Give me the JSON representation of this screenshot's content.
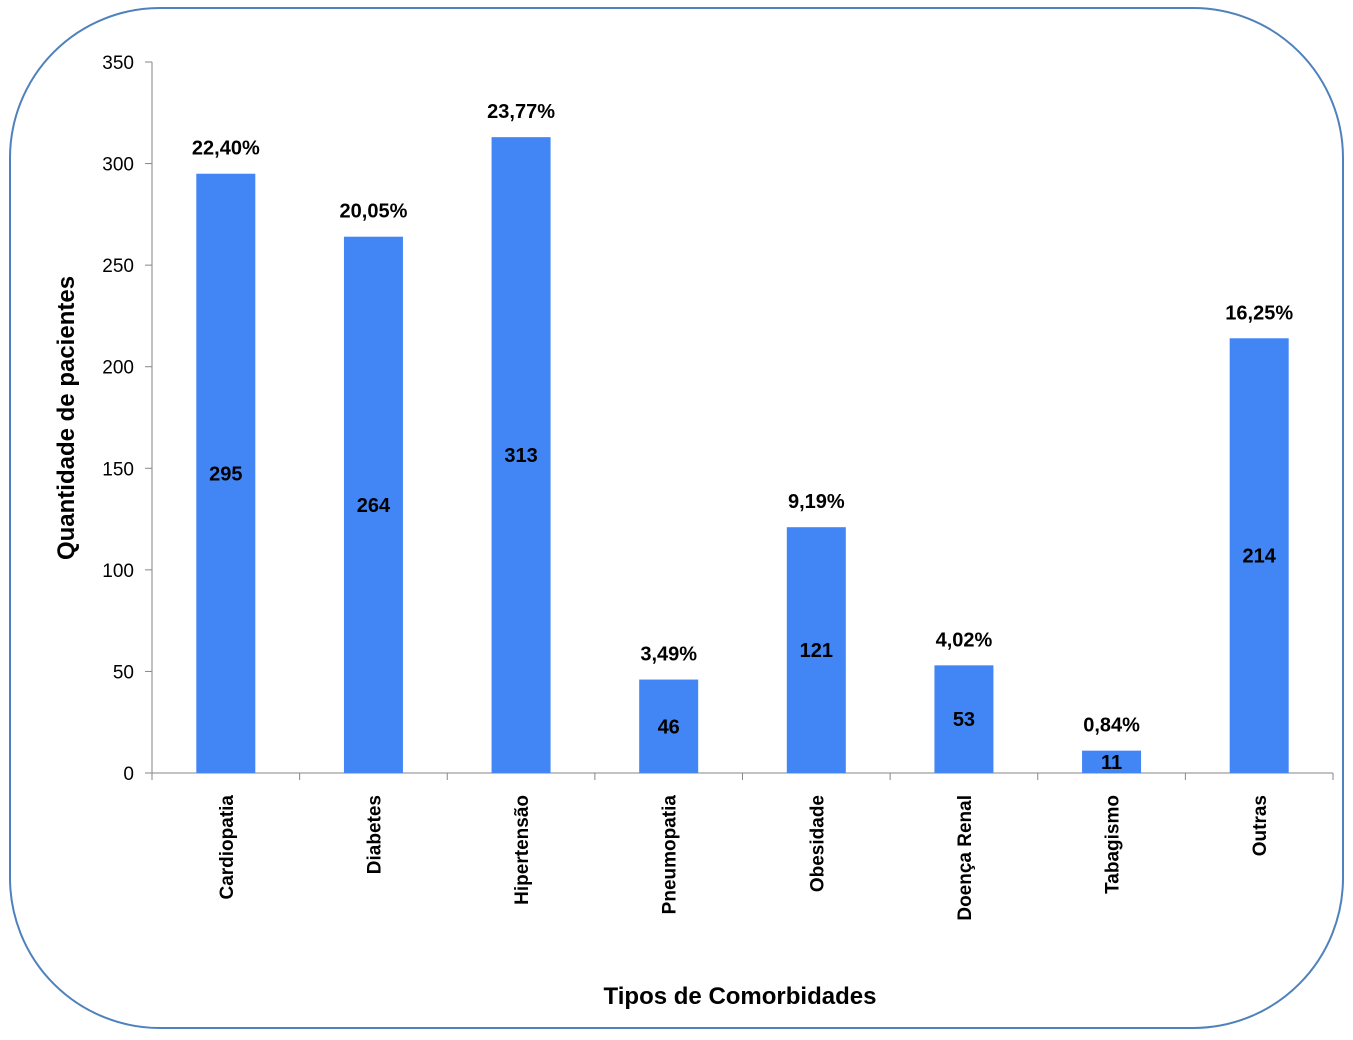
{
  "chart_data": {
    "type": "bar",
    "categories": [
      "Cardiopatia",
      "Diabetes",
      "Hipertensão",
      "Pneumopatia",
      "Obesidade",
      "Doença Renal",
      "Tabagismo",
      "Outras"
    ],
    "values": [
      295,
      264,
      313,
      46,
      121,
      53,
      11,
      214
    ],
    "value_labels": [
      "295",
      "264",
      "313",
      "46",
      "121",
      "53",
      "11",
      "214"
    ],
    "percent_labels": [
      "22,40%",
      "20,05%",
      "23,77%",
      "3,49%",
      "9,19%",
      "4,02%",
      "0,84%",
      "16,25%"
    ],
    "title": "",
    "xlabel": "Tipos de Comorbidades",
    "ylabel": "Quantidade de pacientes",
    "ylim": [
      0,
      350
    ],
    "yticks": [
      "0",
      "50",
      "100",
      "150",
      "200",
      "250",
      "300",
      "350"
    ],
    "bar_color": "#4285F4",
    "border_color": "#4f81bd",
    "grid": false,
    "legend": "none"
  }
}
